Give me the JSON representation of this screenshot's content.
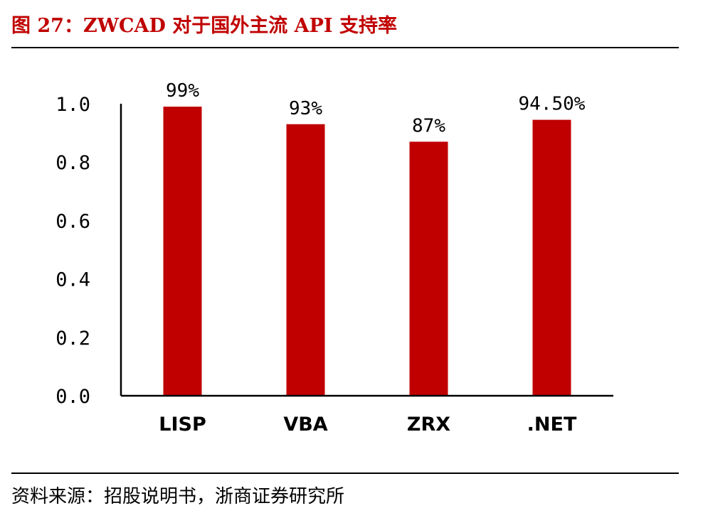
{
  "title": "图 27：ZWCAD 对于国外主流 API 支持率",
  "source": "资料来源：招股说明书，浙商证券研究所",
  "colors": {
    "title": "#c00000",
    "bar": "#c00000"
  },
  "chart_data": {
    "type": "bar",
    "categories": [
      "LISP",
      "VBA",
      "ZRX",
      ".NET"
    ],
    "values": [
      0.99,
      0.93,
      0.87,
      0.945
    ],
    "data_labels": [
      "99%",
      "93%",
      "87%",
      "94.50%"
    ],
    "yticks": [
      "0.0",
      "0.2",
      "0.4",
      "0.6",
      "0.8",
      "1.0"
    ],
    "ylim": [
      0,
      1.0
    ],
    "grid": false,
    "legend": "none",
    "title": "",
    "xlabel": "",
    "ylabel": ""
  }
}
